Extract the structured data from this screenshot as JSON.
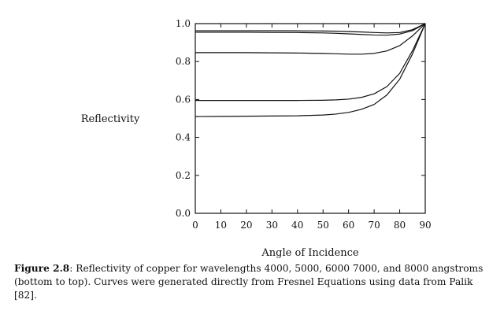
{
  "chart_data": {
    "type": "line",
    "title": "",
    "xlabel": "Angle of Incidence",
    "ylabel": "Reflectivity",
    "xlim": [
      0,
      90
    ],
    "ylim": [
      0.0,
      1.0
    ],
    "xticks": [
      "0",
      "10",
      "20",
      "30",
      "40",
      "50",
      "60",
      "70",
      "80",
      "90"
    ],
    "yticks": [
      "0.0",
      "0.2",
      "0.4",
      "0.6",
      "0.8",
      "1.0"
    ],
    "grid": false,
    "x": [
      0,
      10,
      20,
      30,
      40,
      50,
      55,
      60,
      65,
      70,
      75,
      80,
      85,
      90
    ],
    "series": [
      {
        "values": [
          0.51,
          0.511,
          0.512,
          0.513,
          0.514,
          0.518,
          0.523,
          0.532,
          0.548,
          0.574,
          0.624,
          0.707,
          0.84,
          1.0
        ]
      },
      {
        "values": [
          0.595,
          0.595,
          0.595,
          0.595,
          0.595,
          0.596,
          0.598,
          0.602,
          0.611,
          0.63,
          0.668,
          0.738,
          0.857,
          1.0
        ]
      },
      {
        "values": [
          0.847,
          0.847,
          0.847,
          0.846,
          0.845,
          0.843,
          0.841,
          0.839,
          0.839,
          0.843,
          0.856,
          0.884,
          0.935,
          1.0
        ]
      },
      {
        "values": [
          0.955,
          0.955,
          0.955,
          0.954,
          0.953,
          0.951,
          0.949,
          0.946,
          0.943,
          0.94,
          0.939,
          0.945,
          0.963,
          1.0
        ]
      },
      {
        "values": [
          0.963,
          0.963,
          0.963,
          0.963,
          0.962,
          0.961,
          0.96,
          0.958,
          0.956,
          0.953,
          0.951,
          0.953,
          0.968,
          1.0
        ]
      }
    ]
  },
  "caption": {
    "label": "Figure 2.8",
    "text": ": Reflectivity of copper for wavelengths 4000, 5000, 6000 7000, and 8000 angstroms (bottom to top). Curves were generated directly from Fresnel Equations using data from Palik [82]."
  }
}
